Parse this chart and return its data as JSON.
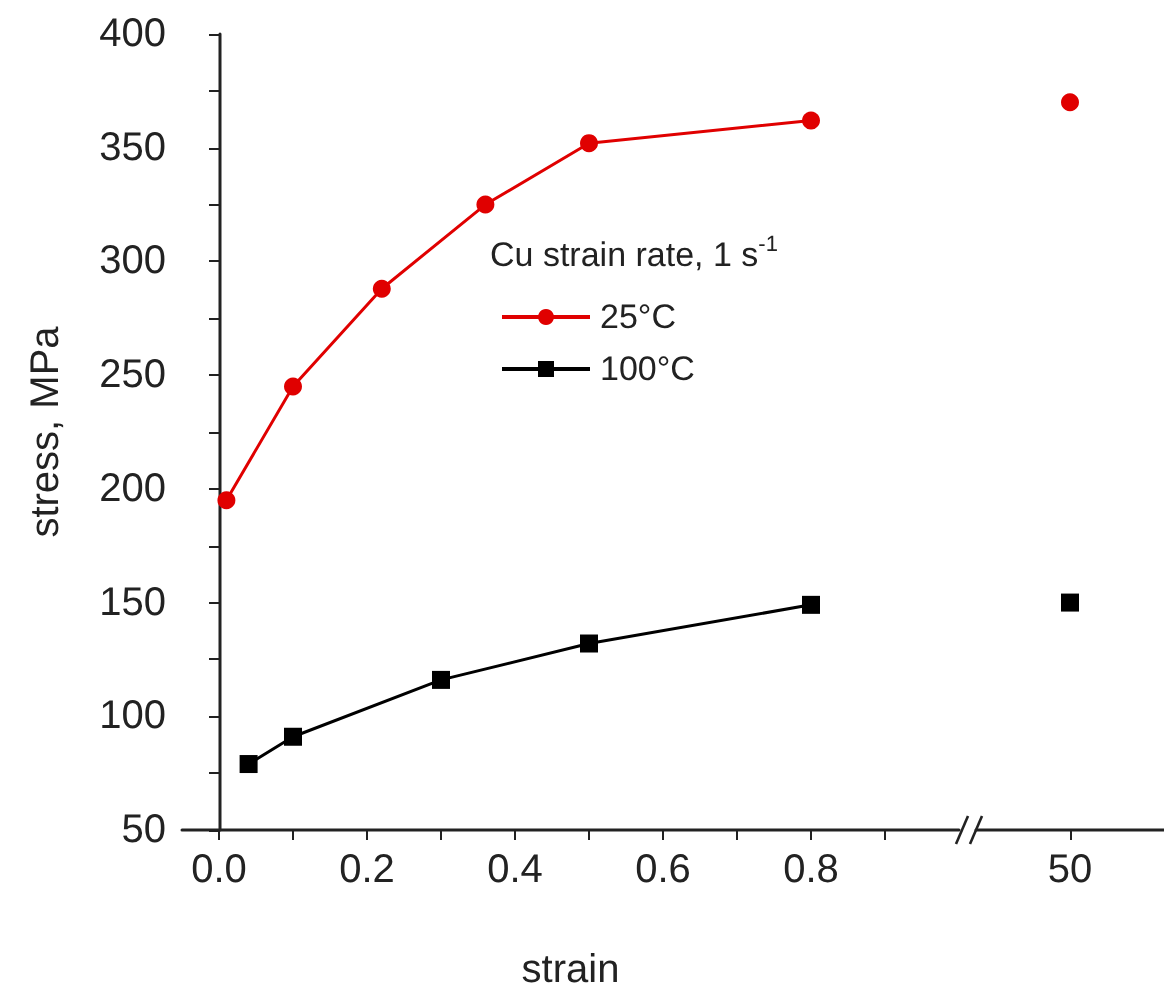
{
  "chart_data": [
    {
      "type": "line",
      "xlabel": "strain",
      "ylabel": "stress, MPa",
      "legend_title": "Cu strain rate, 1 s$^{-1}$",
      "legend": "right",
      "grid": false,
      "xlim": [
        -0.05,
        1.0
      ],
      "xticks": [
        {
          "value": 0,
          "label": "0.0"
        },
        {
          "value": 0.1,
          "label": null
        },
        0.2,
        {
          "value": 0.3,
          "label": null
        },
        0.4,
        {
          "value": 0.5,
          "label": null
        },
        0.6,
        {
          "value": 0.7,
          "label": null
        },
        0.8,
        {
          "value": 0.9,
          "label": null
        }
      ],
      "ylim": [
        50,
        400
      ],
      "yticks": [
        50,
        {
          "value": 75,
          "label": null
        },
        100,
        {
          "value": 125,
          "label": null
        },
        150,
        {
          "value": 175,
          "label": null
        },
        200,
        {
          "value": 225,
          "label": null
        },
        250,
        {
          "value": 275,
          "label": null
        },
        300,
        {
          "value": 325,
          "label": null
        },
        350,
        {
          "value": 375,
          "label": null
        },
        400
      ],
      "series": [
        {
          "name": "25°C",
          "color": "#e00000",
          "marker": "circle",
          "x": [
            0.01,
            0.1,
            0.22,
            0.36,
            0.5,
            0.8
          ],
          "values": [
            195,
            245,
            288,
            325,
            352,
            362
          ]
        },
        {
          "name": "100°C",
          "color": "#000000",
          "marker": "square",
          "x": [
            0.04,
            0.1,
            0.3,
            0.5,
            0.8
          ],
          "values": [
            79,
            91,
            116,
            132,
            149
          ]
        }
      ]
    },
    {
      "type": "line",
      "tick_labels": "x",
      "categories": [
        "50"
      ],
      "ylim": [
        50,
        400
      ],
      "series": [
        {
          "color": "#e00000",
          "marker": "circle",
          "values": [
            370
          ]
        },
        {
          "color": "#000000",
          "marker": "square",
          "values": [
            150
          ]
        }
      ]
    }
  ]
}
